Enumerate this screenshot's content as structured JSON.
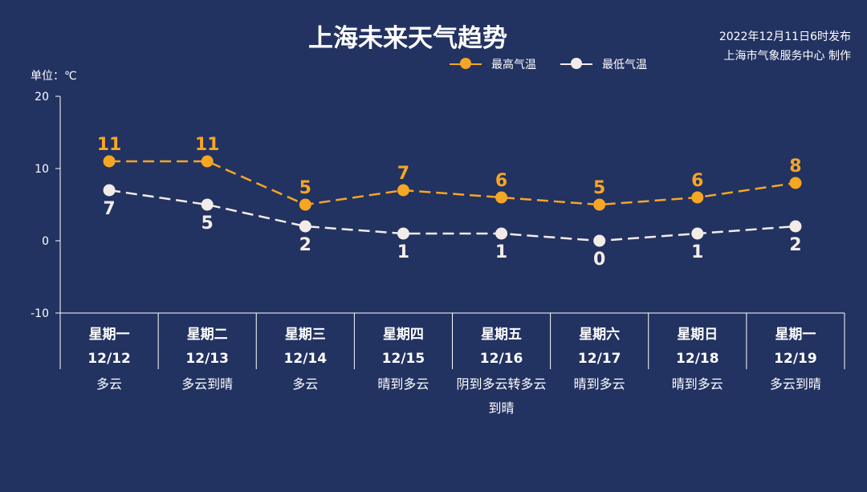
{
  "page": {
    "title": "上海未来天气趋势",
    "publish_line1": "2022年12月11日6时发布",
    "publish_line2": "上海市气象服务中心 制作",
    "unit_label": "单位：℃"
  },
  "colors": {
    "background": "#223261",
    "high": "#f5a623",
    "low": "#f2ece9",
    "axis": "#ffffff"
  },
  "legend": {
    "high_label": "最高气温",
    "low_label": "最低气温"
  },
  "chart_data": {
    "type": "line",
    "title": "上海未来天气趋势",
    "ylabel": "单位：℃",
    "ylim": [
      -10,
      20
    ],
    "yticks": [
      -10,
      0,
      10,
      20
    ],
    "grid": false,
    "legend_position": "top",
    "categories": [
      "星期一",
      "星期二",
      "星期三",
      "星期四",
      "星期五",
      "星期六",
      "星期日",
      "星期一"
    ],
    "dates": [
      "12/12",
      "12/13",
      "12/14",
      "12/15",
      "12/16",
      "12/17",
      "12/18",
      "12/19"
    ],
    "weather": [
      "多云",
      "多云到晴",
      "多云",
      "晴到多云",
      "阴到多云转多云到晴",
      "晴到多云",
      "晴到多云",
      "多云到晴"
    ],
    "series": [
      {
        "name": "最高气温",
        "values": [
          11,
          11,
          5,
          7,
          6,
          5,
          6,
          8
        ]
      },
      {
        "name": "最低气温",
        "values": [
          7,
          5,
          2,
          1,
          1,
          0,
          1,
          2
        ]
      }
    ]
  }
}
